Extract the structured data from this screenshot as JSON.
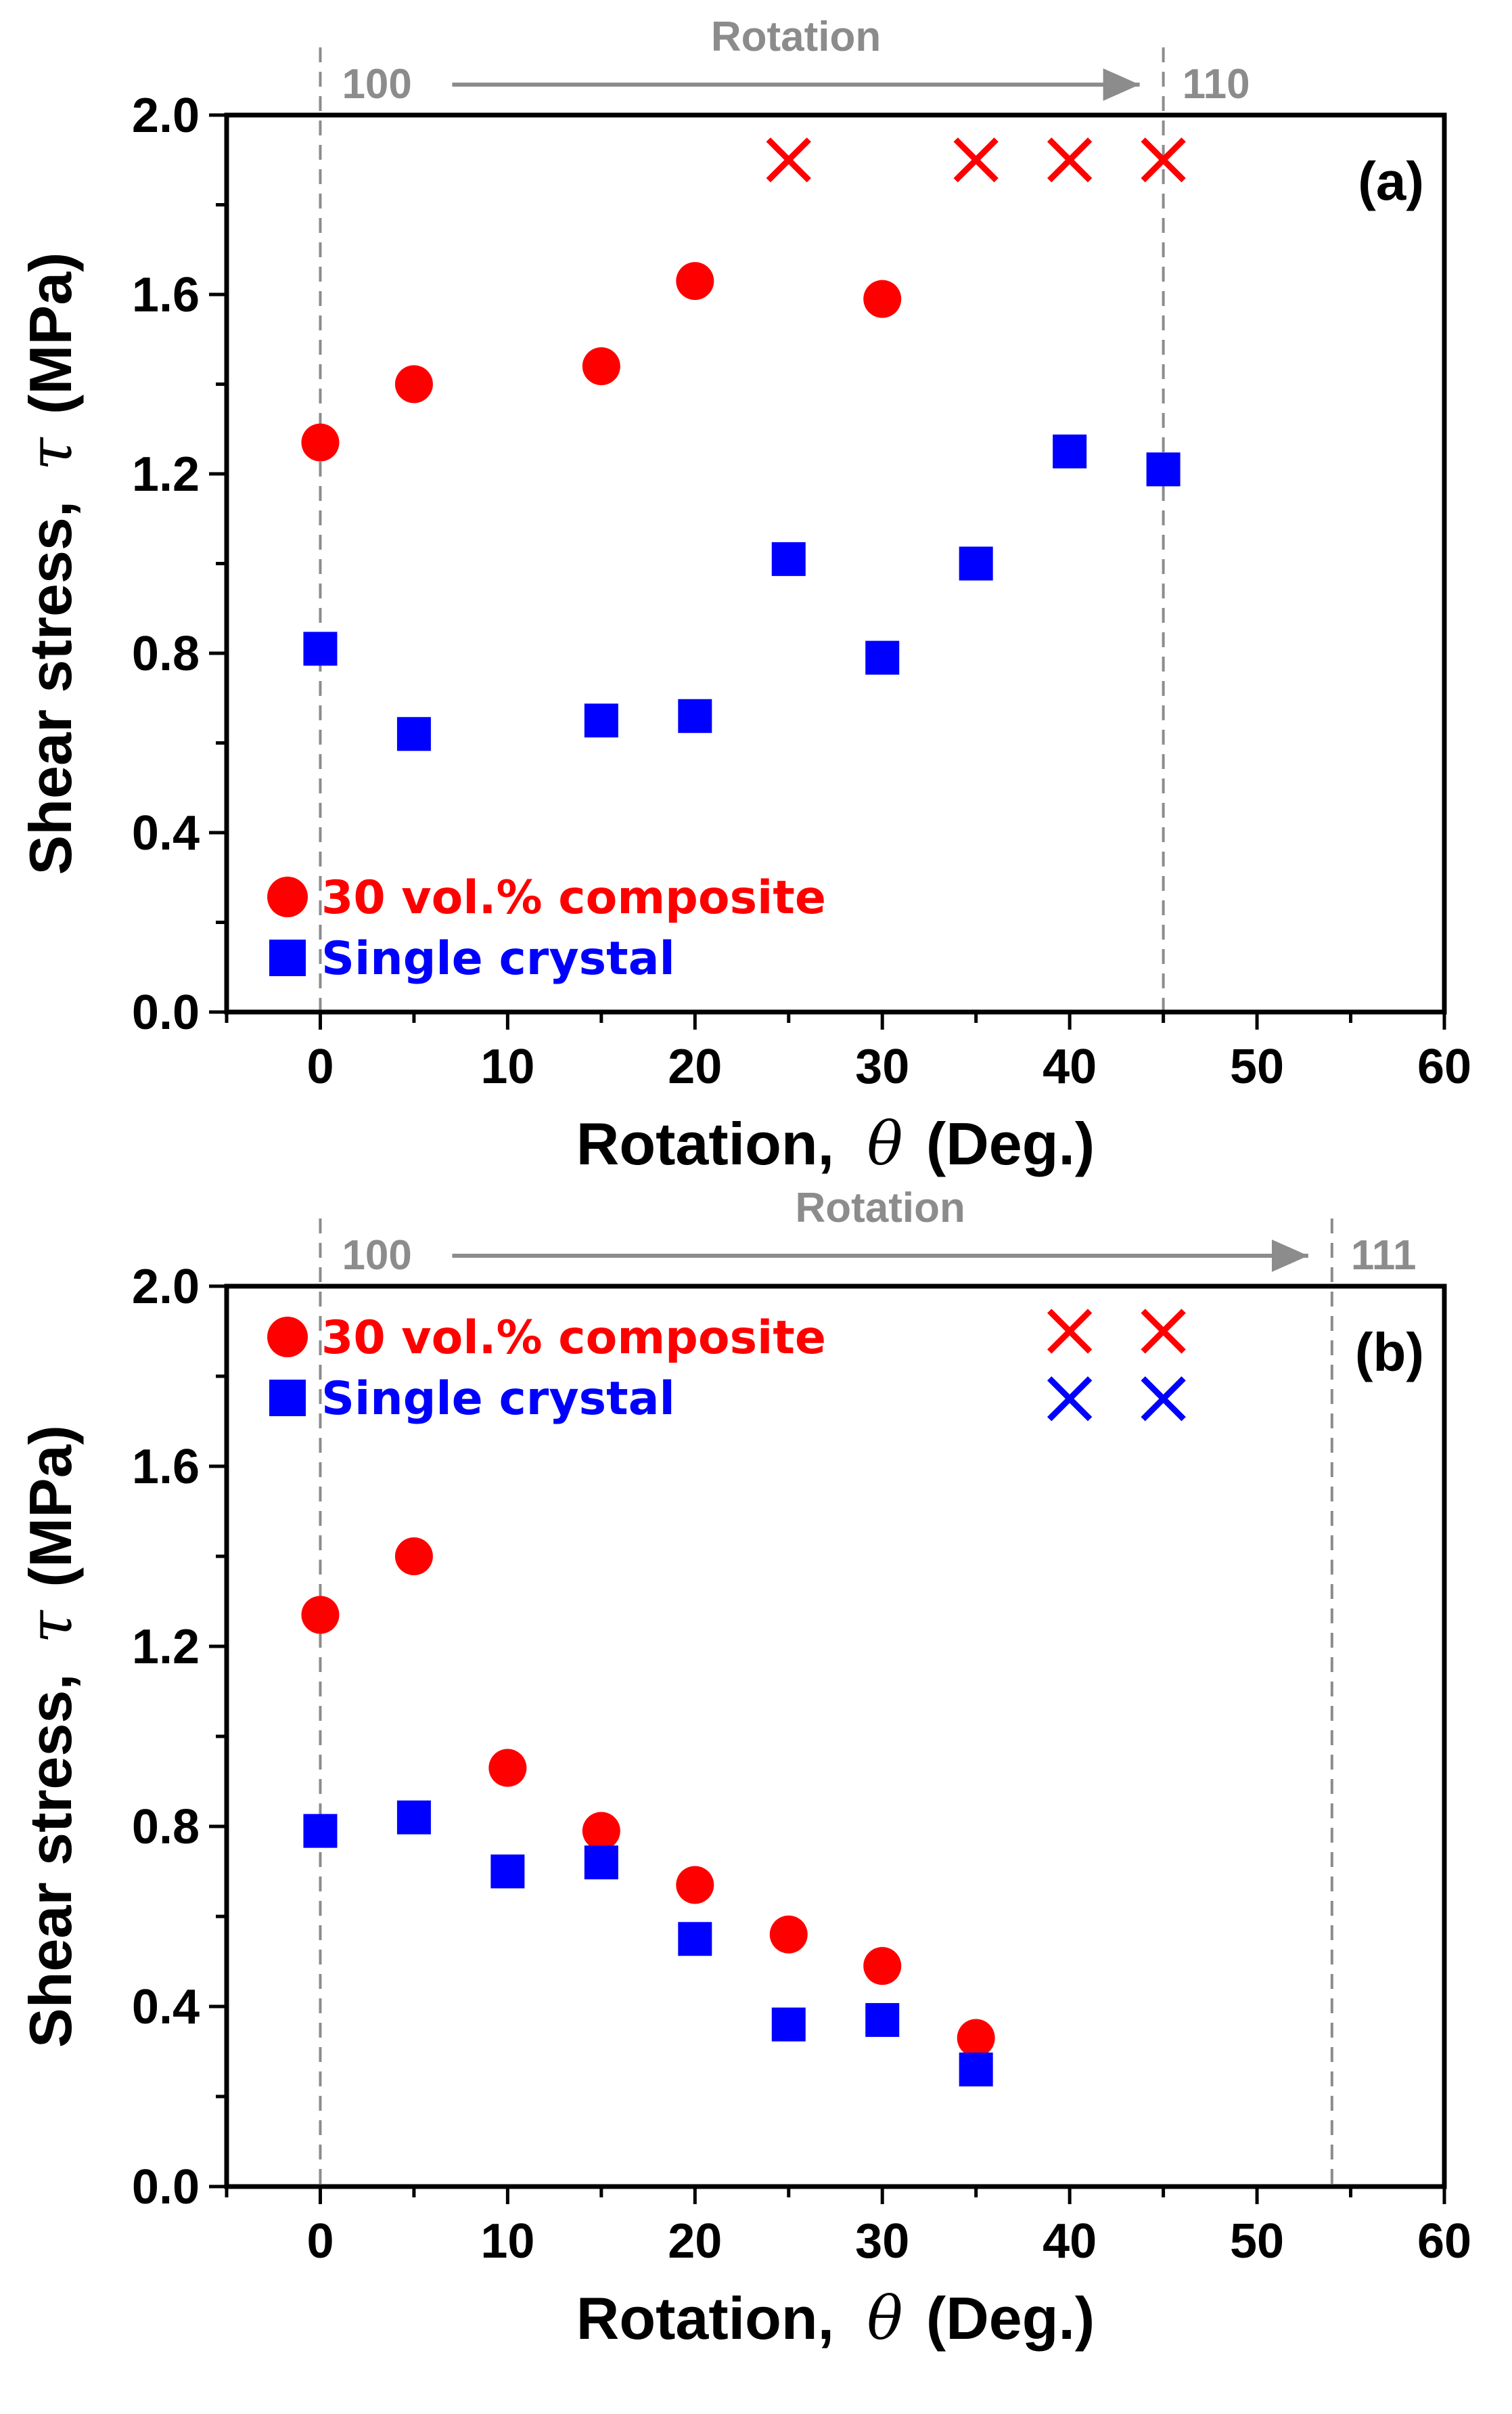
{
  "chart_data": [
    {
      "type": "scatter",
      "panel_label": "(a)",
      "xlabel": "Rotation,",
      "xlabel_symbol": "θ",
      "xlabel_unit": "(Deg.)",
      "ylabel": "Shear stress,",
      "ylabel_symbol": "τ",
      "ylabel_unit": "(MPa)",
      "xlim": [
        -5,
        60
      ],
      "ylim": [
        0,
        2.0
      ],
      "x_ticks": [
        "0",
        "10",
        "20",
        "30",
        "40",
        "50",
        "60"
      ],
      "y_ticks": [
        "0.0",
        "0.4",
        "0.8",
        "1.2",
        "1.6",
        "2.0"
      ],
      "reference_lines": [
        0,
        45
      ],
      "rotation_annotation": {
        "start": "100",
        "end": "110",
        "label": "Rotation"
      },
      "legend_position": "bottom-left",
      "series": [
        {
          "name": "30 vol.% composite",
          "marker": "circle",
          "color": "#ff0000",
          "x": [
            0,
            5,
            15,
            20,
            30
          ],
          "y": [
            1.27,
            1.4,
            1.44,
            1.63,
            1.59
          ]
        },
        {
          "name": "Single crystal",
          "marker": "square",
          "color": "#0000ff",
          "x": [
            0,
            5,
            15,
            20,
            25,
            30,
            35,
            40,
            45
          ],
          "y": [
            0.81,
            0.62,
            0.65,
            0.66,
            1.01,
            0.79,
            1.0,
            1.25,
            1.21
          ]
        }
      ],
      "cross_markers": [
        {
          "color": "#ff0000",
          "x": [
            25,
            35,
            40,
            45
          ],
          "y": [
            1.9,
            1.9,
            1.9,
            1.9
          ]
        }
      ]
    },
    {
      "type": "scatter",
      "panel_label": "(b)",
      "xlabel": "Rotation,",
      "xlabel_symbol": "θ",
      "xlabel_unit": "(Deg.)",
      "ylabel": "Shear stress,",
      "ylabel_symbol": "τ",
      "ylabel_unit": "(MPa)",
      "xlim": [
        -5,
        60
      ],
      "ylim": [
        0,
        2.0
      ],
      "x_ticks": [
        "0",
        "10",
        "20",
        "30",
        "40",
        "50",
        "60"
      ],
      "y_ticks": [
        "0.0",
        "0.4",
        "0.8",
        "1.2",
        "1.6",
        "2.0"
      ],
      "reference_lines": [
        0,
        54
      ],
      "rotation_annotation": {
        "start": "100",
        "end": "111",
        "label": "Rotation"
      },
      "legend_position": "top-left",
      "series": [
        {
          "name": "30 vol.% composite",
          "marker": "circle",
          "color": "#ff0000",
          "x": [
            0,
            5,
            10,
            15,
            20,
            25,
            30,
            35
          ],
          "y": [
            1.27,
            1.4,
            0.93,
            0.79,
            0.67,
            0.56,
            0.49,
            0.33
          ]
        },
        {
          "name": "Single crystal",
          "marker": "square",
          "color": "#0000ff",
          "x": [
            0,
            5,
            10,
            15,
            20,
            25,
            30,
            35
          ],
          "y": [
            0.79,
            0.82,
            0.7,
            0.72,
            0.55,
            0.36,
            0.37,
            0.26
          ]
        }
      ],
      "cross_markers": [
        {
          "color": "#ff0000",
          "x": [
            40,
            45
          ],
          "y": [
            1.9,
            1.9
          ]
        },
        {
          "color": "#0000ff",
          "x": [
            40,
            45
          ],
          "y": [
            1.75,
            1.75
          ]
        }
      ]
    }
  ]
}
